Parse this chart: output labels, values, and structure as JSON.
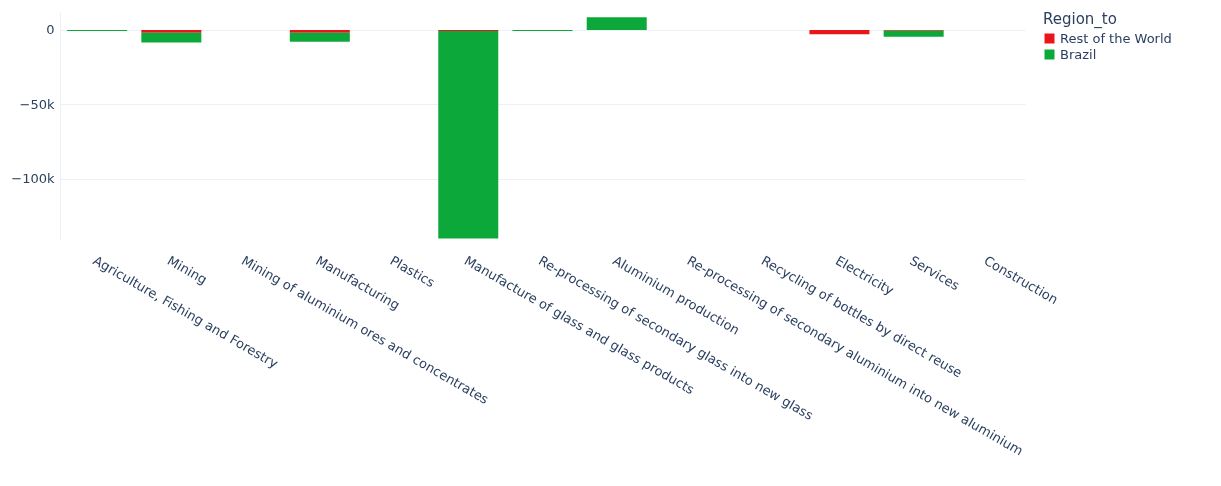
{
  "chart_data": {
    "type": "bar",
    "stacked": true,
    "legend_title": "Region_to",
    "legend": "top right",
    "grid": "y",
    "categories": [
      "Agriculture, Fishing and Forestry",
      "Mining",
      "Mining of aluminium ores and concentrates",
      "Manufacturing",
      "Plastics",
      "Manufacture of glass and glass products",
      "Re-processing of secondary glass into new glass",
      "Aluminium production",
      "Re-processing of secondary aluminium into new aluminium",
      "Recycling of bottles by direct reuse",
      "Electricity",
      "Services",
      "Construction"
    ],
    "series": [
      {
        "name": "Rest of the World",
        "color": "#e8161b",
        "values": [
          null,
          -2000,
          null,
          -2000,
          null,
          -700,
          null,
          null,
          null,
          null,
          -3000,
          -500,
          null
        ]
      },
      {
        "name": "Brazil",
        "color": "#0ca83a",
        "values": [
          -800,
          -6500,
          null,
          -5900,
          null,
          -139300,
          -800,
          8500,
          null,
          null,
          null,
          -4100,
          null
        ]
      }
    ],
    "ylim": [
      -141000,
      12000
    ],
    "yticks": [
      0,
      {
        "value": -50000,
        "label": "−50k"
      },
      {
        "value": -100000,
        "label": "−100k"
      }
    ]
  }
}
